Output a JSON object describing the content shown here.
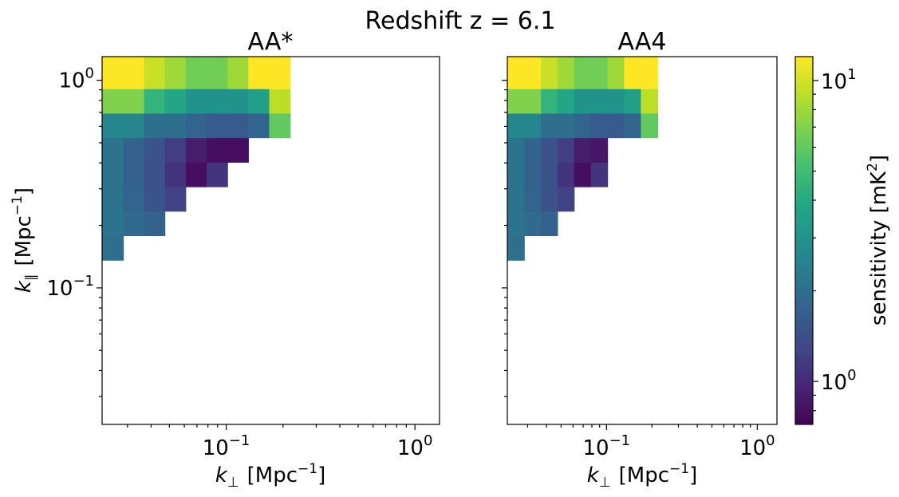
{
  "figure": {
    "suptitle": "Redshift z = 6.1"
  },
  "chart_data": [
    {
      "type": "heatmap",
      "title": "AA*",
      "xlabel_main": "k",
      "xlabel_sub": "⊥",
      "xlabel_unit": "[Mpc",
      "xlabel_exp": "−1",
      "xlabel_close": "]",
      "ylabel_main": "k",
      "ylabel_sub": "∥",
      "ylabel_unit": "[Mpc",
      "ylabel_exp": "−1",
      "ylabel_close": "]",
      "x_scale": "log",
      "y_scale": "log",
      "xlim": [
        0.022,
        1.35
      ],
      "ylim": [
        0.022,
        1.3
      ],
      "x_ticks": [
        {
          "value": 0.1,
          "base": "10",
          "exp": "−1"
        },
        {
          "value": 1,
          "base": "10",
          "exp": "0"
        }
      ],
      "y_ticks": [
        {
          "value": 0.1,
          "base": "10",
          "exp": "−1"
        },
        {
          "value": 1,
          "base": "10",
          "exp": "0"
        }
      ],
      "x_edges": [
        0.022,
        0.0285,
        0.0367,
        0.0473,
        0.061,
        0.0788,
        0.1016,
        0.131,
        0.169,
        0.2183,
        0.2816,
        0.3635,
        0.4692
      ],
      "y_edges": [
        0.136,
        0.1785,
        0.2342,
        0.3073,
        0.4032,
        0.5293,
        0.6944,
        0.9111,
        1.3
      ],
      "cells": [
        [
          2.0,
          null,
          null,
          null,
          null,
          null,
          null,
          null,
          null,
          null,
          null,
          null
        ],
        [
          2.1,
          1.9,
          1.75,
          null,
          null,
          null,
          null,
          null,
          null,
          null,
          null,
          null
        ],
        [
          2.1,
          1.8,
          1.5,
          1.25,
          null,
          null,
          null,
          null,
          null,
          null,
          null,
          null
        ],
        [
          2.1,
          1.75,
          1.45,
          1.1,
          0.8,
          1.1,
          null,
          null,
          null,
          null,
          null,
          null
        ],
        [
          2.1,
          1.75,
          1.5,
          1.2,
          0.9,
          0.8,
          0.8,
          null,
          null,
          null,
          null,
          null
        ],
        [
          2.6,
          2.6,
          2.0,
          2.0,
          1.8,
          1.6,
          1.6,
          1.8,
          6.0,
          null,
          null,
          null
        ],
        [
          7.0,
          7.0,
          4.5,
          3.8,
          3.0,
          3.0,
          3.0,
          3.5,
          9.0,
          null,
          null,
          null
        ],
        [
          12.0,
          12.0,
          9.5,
          8.0,
          6.5,
          6.5,
          8.0,
          12.0,
          12.0,
          null,
          null,
          null
        ]
      ]
    },
    {
      "type": "heatmap",
      "title": "AA4",
      "xlabel_main": "k",
      "xlabel_sub": "⊥",
      "xlabel_unit": "[Mpc",
      "xlabel_exp": "−1",
      "xlabel_close": "]",
      "x_scale": "log",
      "y_scale": "log",
      "xlim": [
        0.022,
        1.35
      ],
      "ylim": [
        0.022,
        1.3
      ],
      "x_ticks": [
        {
          "value": 0.1,
          "base": "10",
          "exp": "−1"
        },
        {
          "value": 1,
          "base": "10",
          "exp": "0"
        }
      ],
      "x_edges": [
        0.022,
        0.0285,
        0.0367,
        0.0473,
        0.061,
        0.0788,
        0.1016,
        0.131,
        0.169,
        0.2183,
        0.2816,
        0.3635,
        0.4692
      ],
      "y_edges": [
        0.136,
        0.1785,
        0.2342,
        0.3073,
        0.4032,
        0.5293,
        0.6944,
        0.9111,
        1.3
      ],
      "cells": [
        [
          2.0,
          null,
          null,
          null,
          null,
          null,
          null,
          null,
          null,
          null,
          null,
          null
        ],
        [
          2.1,
          1.9,
          1.75,
          null,
          null,
          null,
          null,
          null,
          null,
          null,
          null,
          null
        ],
        [
          2.1,
          1.8,
          1.5,
          1.25,
          null,
          null,
          null,
          null,
          null,
          null,
          null,
          null
        ],
        [
          2.1,
          1.75,
          1.45,
          1.1,
          0.8,
          1.1,
          null,
          null,
          null,
          null,
          null,
          null
        ],
        [
          2.1,
          1.75,
          1.5,
          1.2,
          0.9,
          0.85,
          null,
          null,
          null,
          null,
          null,
          null
        ],
        [
          2.6,
          2.6,
          2.0,
          2.0,
          1.8,
          1.6,
          1.6,
          1.8,
          6.0,
          null,
          null,
          null
        ],
        [
          7.0,
          7.0,
          4.5,
          3.8,
          3.0,
          3.0,
          3.0,
          3.5,
          9.0,
          null,
          null,
          null
        ],
        [
          12.0,
          12.0,
          9.5,
          8.0,
          6.5,
          6.5,
          8.0,
          12.0,
          12.0,
          null,
          null,
          null
        ]
      ]
    }
  ],
  "colorbar": {
    "colormap": "viridis",
    "scale": "log",
    "range": [
      0.72,
      12.0
    ],
    "label": "sensitivity [mK",
    "label_exp": "2",
    "label_close": "]",
    "ticks": [
      {
        "value": 1,
        "base": "10",
        "exp": "0"
      },
      {
        "value": 10,
        "base": "10",
        "exp": "1"
      }
    ]
  }
}
